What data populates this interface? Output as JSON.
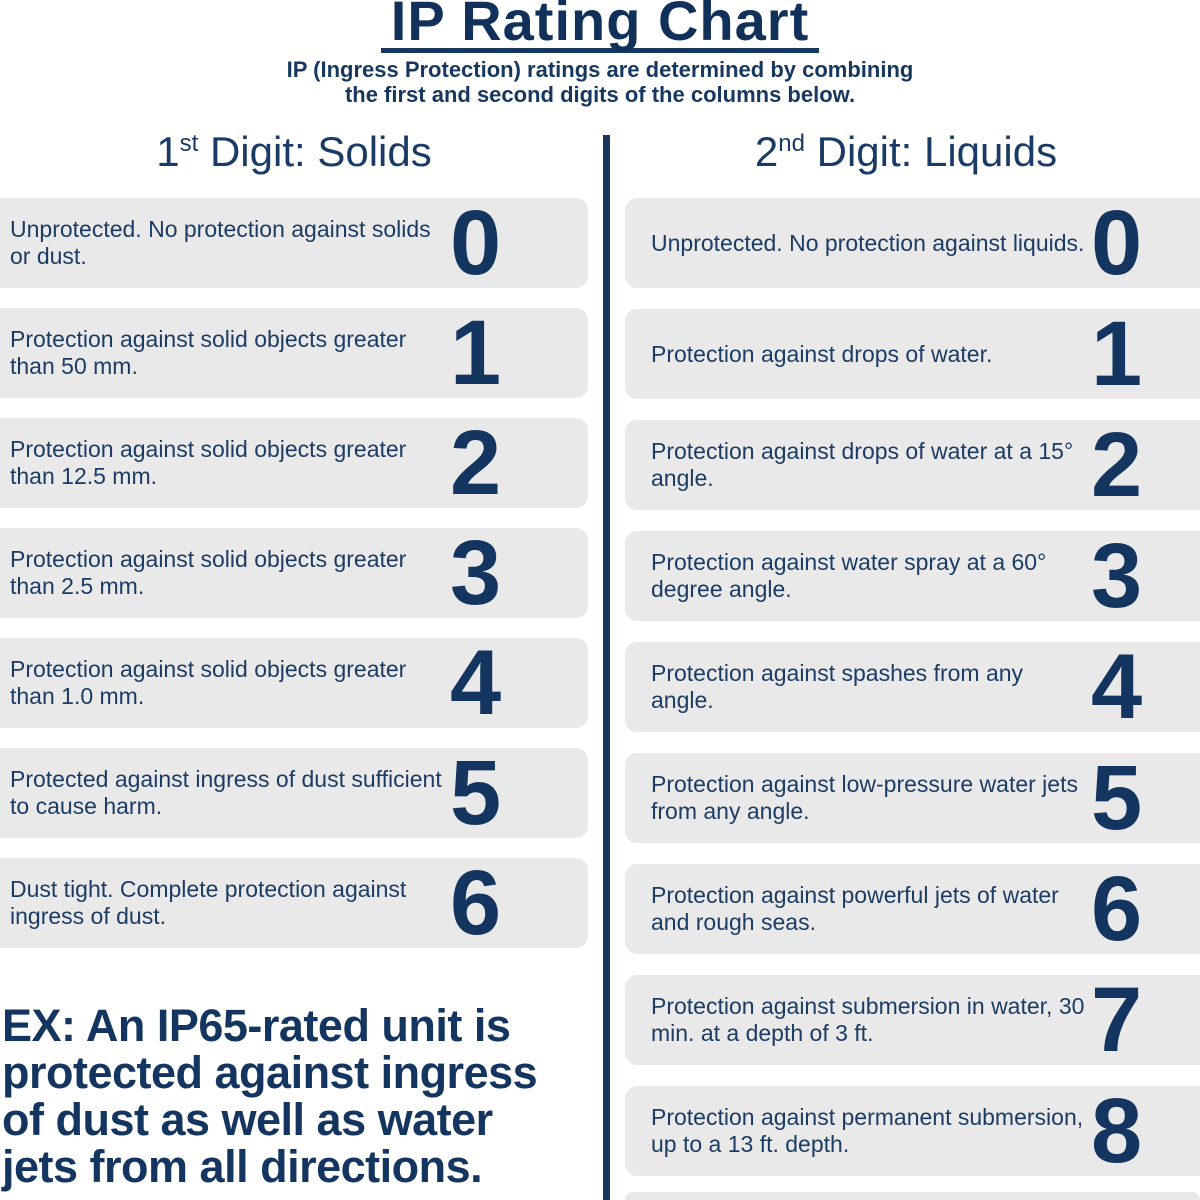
{
  "title": "IP Rating Chart",
  "subtitle": {
    "line1": "IP (Ingress Protection) ratings are determined by combining",
    "line2": "the first and second digits of the columns below."
  },
  "columns": {
    "solids": {
      "heading": {
        "num": "1",
        "sup": "st",
        "rest": " Digit: Solids"
      },
      "rows": [
        {
          "digit": "0",
          "text": "Unprotected. No protection against solids or dust."
        },
        {
          "digit": "1",
          "text": "Protection against solid objects greater than 50 mm."
        },
        {
          "digit": "2",
          "text": "Protection against solid objects greater than 12.5 mm."
        },
        {
          "digit": "3",
          "text": "Protection against solid objects greater than 2.5 mm."
        },
        {
          "digit": "4",
          "text": "Protection against solid objects greater than 1.0 mm."
        },
        {
          "digit": "5",
          "text": "Protected against ingress of dust sufficient to cause harm."
        },
        {
          "digit": "6",
          "text": "Dust tight. Complete protection against ingress of dust."
        }
      ]
    },
    "liquids": {
      "heading": {
        "num": "2",
        "sup": "nd",
        "rest": " Digit: Liquids"
      },
      "rows": [
        {
          "digit": "0",
          "text": "Unprotected. No protection against liquids."
        },
        {
          "digit": "1",
          "text": "Protection against drops of water."
        },
        {
          "digit": "2",
          "text": "Protection against drops of water at a 15° angle."
        },
        {
          "digit": "3",
          "text": "Protection against water spray at a 60° degree angle."
        },
        {
          "digit": "4",
          "text": "Protection against spashes from any angle."
        },
        {
          "digit": "5",
          "text": "Protection against low-pressure water jets from any angle."
        },
        {
          "digit": "6",
          "text": "Protection against powerful jets of water and rough seas."
        },
        {
          "digit": "7",
          "text": "Protection against submersion in water, 30 min. at a depth of 3 ft."
        },
        {
          "digit": "8",
          "text": "Protection against permanent submersion, up to a 13 ft. depth."
        }
      ]
    }
  },
  "example_lines": [
    "EX: An IP65-rated unit is",
    "protected against ingress",
    "of dust as well as water",
    "jets from all directions."
  ],
  "colors": {
    "navy": "#17375f",
    "row_background": "#e9e9e9",
    "page_background": "#ffffff"
  }
}
